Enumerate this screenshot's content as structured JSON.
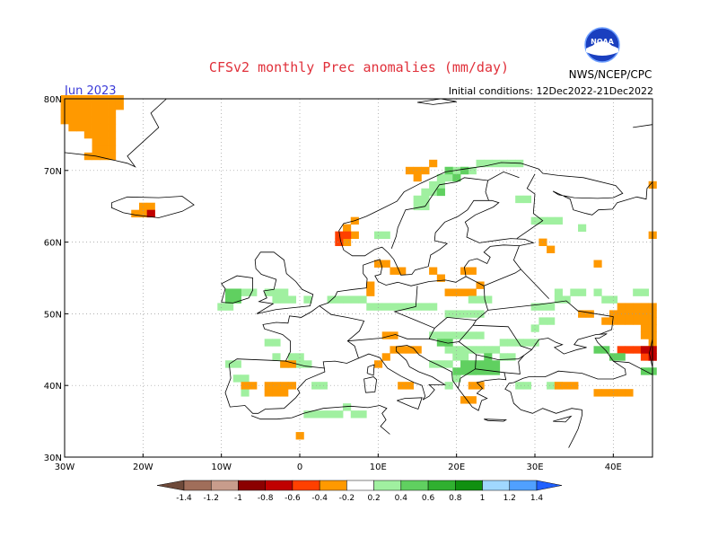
{
  "header": {
    "title": "CFSv2 monthly Prec anomalies (mm/day)",
    "month": "Jun 2023",
    "initial_conditions": "Initial conditions: 12Dec2022-21Dec2022",
    "agency": "NWS/NCEP/CPC",
    "logo_text": "NOAA"
  },
  "axes": {
    "lat_labels": [
      "80N",
      "70N",
      "60N",
      "50N",
      "40N",
      "30N"
    ],
    "lon_labels": [
      "30W",
      "20W",
      "10W",
      "0",
      "10E",
      "20E",
      "30E",
      "40E"
    ],
    "lat_values": [
      80,
      70,
      60,
      50,
      40,
      30
    ],
    "lon_values": [
      -30,
      -20,
      -10,
      0,
      10,
      20,
      30,
      40
    ],
    "lon_range": [
      -30,
      45
    ],
    "lat_range": [
      30,
      80
    ],
    "grid": "dotted"
  },
  "colorbar": {
    "tick_labels": [
      "-1.4",
      "-1.2",
      "-1",
      "-0.8",
      "-0.6",
      "-0.4",
      "-0.2",
      "0.2",
      "0.4",
      "0.6",
      "0.8",
      "1",
      "1.2",
      "1.4"
    ],
    "colors": [
      "#6e4a3a",
      "#a06e5a",
      "#c89c8c",
      "#8b0000",
      "#c00000",
      "#ff4000",
      "#ff9900",
      "#ffffff",
      "#a0f0a0",
      "#60d060",
      "#30b030",
      "#109010",
      "#a0d8ff",
      "#50a0ff",
      "#2060ff"
    ]
  },
  "anomaly_regions": [
    {
      "name": "greenland-dry",
      "color": "#ff9900",
      "cells": [
        [
          -30,
          80
        ],
        [
          -29,
          80
        ],
        [
          -28,
          80
        ],
        [
          -27,
          80
        ],
        [
          -26,
          80
        ],
        [
          -25,
          80
        ],
        [
          -24,
          80
        ],
        [
          -23,
          80
        ],
        [
          -30,
          79
        ],
        [
          -29,
          79
        ],
        [
          -28,
          79
        ],
        [
          -27,
          79
        ],
        [
          -26,
          79
        ],
        [
          -25,
          79
        ],
        [
          -24,
          79
        ],
        [
          -23,
          79
        ],
        [
          -30,
          78
        ],
        [
          -29,
          78
        ],
        [
          -28,
          78
        ],
        [
          -27,
          78
        ],
        [
          -26,
          78
        ],
        [
          -25,
          78
        ],
        [
          -24,
          78
        ],
        [
          -30,
          77
        ],
        [
          -29,
          77
        ],
        [
          -28,
          77
        ],
        [
          -27,
          77
        ],
        [
          -26,
          77
        ],
        [
          -25,
          77
        ],
        [
          -24,
          77
        ],
        [
          -29,
          76
        ],
        [
          -28,
          76
        ],
        [
          -27,
          76
        ],
        [
          -26,
          76
        ],
        [
          -25,
          76
        ],
        [
          -24,
          76
        ],
        [
          -27,
          75
        ],
        [
          -26,
          75
        ],
        [
          -25,
          75
        ],
        [
          -24,
          75
        ],
        [
          -26,
          74
        ],
        [
          -25,
          74
        ],
        [
          -24,
          74
        ],
        [
          -26,
          73
        ],
        [
          -25,
          73
        ],
        [
          -24,
          73
        ],
        [
          -27,
          72
        ],
        [
          -26,
          72
        ],
        [
          -25,
          72
        ],
        [
          -24,
          72
        ]
      ]
    },
    {
      "name": "iceland-dry",
      "color": "#ff9900",
      "cells": [
        [
          -21,
          64
        ],
        [
          -20,
          64
        ],
        [
          -19,
          64
        ],
        [
          -20,
          65
        ],
        [
          -19,
          65
        ]
      ]
    },
    {
      "name": "iceland-very-dry",
      "color": "#c00000",
      "cells": [
        [
          -19,
          64
        ]
      ]
    },
    {
      "name": "norway-dry",
      "color": "#ff9900",
      "cells": [
        [
          6,
          61
        ],
        [
          6,
          60
        ],
        [
          7,
          61
        ],
        [
          7,
          63
        ],
        [
          6,
          62
        ],
        [
          15,
          70
        ],
        [
          14,
          70
        ],
        [
          16,
          70
        ],
        [
          17,
          71
        ],
        [
          15,
          69
        ]
      ]
    },
    {
      "name": "norway-very-dry",
      "color": "#ff4000",
      "cells": [
        [
          5,
          61
        ],
        [
          5,
          60
        ],
        [
          6,
          61
        ]
      ]
    },
    {
      "name": "scandinavia-wet",
      "color": "#a0f0a0",
      "cells": [
        [
          19,
          70
        ],
        [
          20,
          70
        ],
        [
          21,
          70
        ],
        [
          22,
          70
        ],
        [
          23,
          71
        ],
        [
          24,
          71
        ],
        [
          25,
          71
        ],
        [
          26,
          71
        ],
        [
          27,
          71
        ],
        [
          28,
          71
        ],
        [
          18,
          69
        ],
        [
          19,
          69
        ],
        [
          17,
          68
        ],
        [
          18,
          68
        ],
        [
          16,
          67
        ],
        [
          17,
          67
        ],
        [
          16,
          66
        ],
        [
          15,
          66
        ],
        [
          15,
          65
        ],
        [
          16,
          65
        ],
        [
          28,
          66
        ],
        [
          29,
          66
        ],
        [
          30,
          63
        ],
        [
          31,
          63
        ],
        [
          32,
          63
        ],
        [
          33,
          63
        ],
        [
          36,
          62
        ],
        [
          10,
          61
        ],
        [
          11,
          61
        ]
      ]
    },
    {
      "name": "scandinavia-wet-mid",
      "color": "#60d060",
      "cells": [
        [
          19,
          70
        ],
        [
          20,
          69
        ],
        [
          21,
          70
        ],
        [
          18,
          67
        ]
      ]
    },
    {
      "name": "baltic-dry",
      "color": "#ff9900",
      "cells": [
        [
          10,
          57
        ],
        [
          11,
          57
        ],
        [
          12,
          56
        ],
        [
          13,
          56
        ],
        [
          17,
          56
        ],
        [
          18,
          55
        ],
        [
          21,
          56
        ],
        [
          22,
          56
        ],
        [
          23,
          54
        ],
        [
          19,
          53
        ],
        [
          20,
          53
        ],
        [
          21,
          53
        ],
        [
          22,
          53
        ],
        [
          9,
          54
        ],
        [
          9,
          53
        ],
        [
          31,
          60
        ],
        [
          32,
          59
        ]
      ]
    },
    {
      "name": "uk-wet",
      "color": "#a0f0a0",
      "cells": [
        [
          -9,
          53
        ],
        [
          -8,
          53
        ],
        [
          -7,
          53
        ],
        [
          -6,
          53
        ],
        [
          -4,
          53
        ],
        [
          -3,
          52
        ],
        [
          -2,
          52
        ],
        [
          -1,
          52
        ],
        [
          -3,
          53
        ],
        [
          -2,
          53
        ],
        [
          1,
          52
        ],
        [
          4,
          52
        ],
        [
          5,
          52
        ],
        [
          -10,
          51
        ],
        [
          -9,
          51
        ]
      ]
    },
    {
      "name": "uk-wet-mid",
      "color": "#60d060",
      "cells": [
        [
          -9,
          53
        ],
        [
          -8,
          53
        ],
        [
          -9,
          52
        ],
        [
          -8,
          52
        ]
      ]
    },
    {
      "name": "central-europe-wet",
      "color": "#a0f0a0",
      "cells": [
        [
          6,
          52
        ],
        [
          7,
          52
        ],
        [
          8,
          52
        ],
        [
          9,
          51
        ],
        [
          10,
          51
        ],
        [
          11,
          51
        ],
        [
          12,
          51
        ],
        [
          13,
          51
        ],
        [
          14,
          51
        ],
        [
          15,
          51
        ],
        [
          16,
          51
        ],
        [
          17,
          51
        ],
        [
          19,
          50
        ],
        [
          20,
          50
        ],
        [
          21,
          50
        ],
        [
          22,
          50
        ],
        [
          23,
          50
        ],
        [
          22,
          52
        ],
        [
          23,
          52
        ],
        [
          24,
          52
        ],
        [
          30,
          51
        ],
        [
          31,
          51
        ],
        [
          32,
          51
        ],
        [
          33,
          52
        ],
        [
          34,
          52
        ],
        [
          33,
          53
        ],
        [
          35,
          53
        ],
        [
          36,
          53
        ],
        [
          38,
          53
        ],
        [
          39,
          52
        ],
        [
          40,
          52
        ],
        [
          43,
          53
        ],
        [
          44,
          53
        ],
        [
          31,
          49
        ],
        [
          32,
          49
        ],
        [
          30,
          48
        ]
      ]
    },
    {
      "name": "balkans-wet",
      "color": "#a0f0a0",
      "cells": [
        [
          17,
          47
        ],
        [
          18,
          47
        ],
        [
          19,
          47
        ],
        [
          20,
          47
        ],
        [
          21,
          47
        ],
        [
          22,
          47
        ],
        [
          23,
          47
        ],
        [
          19,
          45
        ],
        [
          20,
          45
        ],
        [
          21,
          45
        ],
        [
          22,
          45
        ],
        [
          23,
          45
        ],
        [
          24,
          45
        ],
        [
          25,
          45
        ],
        [
          26,
          46
        ],
        [
          27,
          46
        ],
        [
          28,
          46
        ],
        [
          29,
          46
        ],
        [
          30,
          46
        ],
        [
          20,
          44
        ],
        [
          21,
          44
        ],
        [
          26,
          44
        ],
        [
          27,
          44
        ],
        [
          17,
          43
        ],
        [
          18,
          43
        ],
        [
          19,
          43
        ],
        [
          22,
          42
        ],
        [
          20,
          41
        ],
        [
          19,
          40
        ],
        [
          28,
          40
        ],
        [
          29,
          40
        ],
        [
          32,
          40
        ],
        [
          33,
          40
        ]
      ]
    },
    {
      "name": "balkans-wet-mid",
      "color": "#60d060",
      "cells": [
        [
          21,
          43
        ],
        [
          22,
          43
        ],
        [
          23,
          43
        ],
        [
          24,
          43
        ],
        [
          25,
          43
        ],
        [
          22,
          42
        ],
        [
          23,
          42
        ],
        [
          24,
          42
        ],
        [
          25,
          42
        ],
        [
          20,
          42
        ],
        [
          21,
          42
        ],
        [
          24,
          44
        ],
        [
          19,
          46
        ],
        [
          18,
          46
        ]
      ]
    },
    {
      "name": "iberia-wet",
      "color": "#a0f0a0",
      "cells": [
        [
          -9,
          43
        ],
        [
          -8,
          43
        ],
        [
          -2,
          43
        ],
        [
          -1,
          43
        ],
        [
          0,
          43
        ],
        [
          1,
          43
        ],
        [
          -8,
          41
        ],
        [
          -7,
          41
        ],
        [
          -7,
          39
        ],
        [
          -3,
          44
        ],
        [
          2,
          40
        ],
        [
          3,
          40
        ],
        [
          -4,
          46
        ],
        [
          -3,
          46
        ],
        [
          -1,
          44
        ],
        [
          0,
          44
        ]
      ]
    },
    {
      "name": "iberia-dry",
      "color": "#ff9900",
      "cells": [
        [
          -7,
          40
        ],
        [
          -6,
          40
        ],
        [
          -4,
          40
        ],
        [
          -3,
          40
        ],
        [
          -2,
          40
        ],
        [
          -1,
          40
        ],
        [
          -4,
          39
        ],
        [
          -3,
          39
        ],
        [
          -2,
          39
        ],
        [
          -2,
          43
        ],
        [
          -1,
          43
        ],
        [
          0,
          33
        ]
      ]
    },
    {
      "name": "north-africa-wet",
      "color": "#a0f0a0",
      "cells": [
        [
          1,
          36
        ],
        [
          2,
          36
        ],
        [
          3,
          36
        ],
        [
          4,
          36
        ],
        [
          5,
          36
        ],
        [
          6,
          37
        ],
        [
          7,
          36
        ],
        [
          8,
          36
        ]
      ]
    },
    {
      "name": "italy-dry",
      "color": "#ff9900",
      "cells": [
        [
          11,
          47
        ],
        [
          12,
          47
        ],
        [
          13,
          45
        ],
        [
          14,
          45
        ],
        [
          15,
          45
        ],
        [
          12,
          45
        ],
        [
          11,
          44
        ],
        [
          10,
          43
        ],
        [
          13,
          40
        ],
        [
          14,
          40
        ]
      ]
    },
    {
      "name": "turkey-dry",
      "color": "#ff9900",
      "cells": [
        [
          33,
          40
        ],
        [
          34,
          40
        ],
        [
          35,
          40
        ],
        [
          38,
          39
        ],
        [
          39,
          39
        ],
        [
          40,
          39
        ],
        [
          41,
          39
        ],
        [
          42,
          39
        ]
      ]
    },
    {
      "name": "greece-dry",
      "color": "#ff9900",
      "cells": [
        [
          22,
          40
        ],
        [
          23,
          40
        ],
        [
          21,
          38
        ],
        [
          22,
          38
        ]
      ]
    },
    {
      "name": "russia-dry",
      "color": "#ff9900",
      "cells": [
        [
          41,
          51
        ],
        [
          42,
          51
        ],
        [
          43,
          51
        ],
        [
          44,
          51
        ],
        [
          45,
          51
        ],
        [
          40,
          50
        ],
        [
          41,
          50
        ],
        [
          42,
          50
        ],
        [
          43,
          50
        ],
        [
          44,
          50
        ],
        [
          45,
          50
        ],
        [
          39,
          49
        ],
        [
          40,
          49
        ],
        [
          41,
          49
        ],
        [
          42,
          49
        ],
        [
          43,
          49
        ],
        [
          44,
          49
        ],
        [
          45,
          49
        ],
        [
          44,
          48
        ],
        [
          45,
          48
        ],
        [
          44,
          47
        ],
        [
          45,
          47
        ],
        [
          45,
          46
        ],
        [
          45,
          45
        ],
        [
          44,
          45
        ],
        [
          36,
          50
        ],
        [
          37,
          50
        ],
        [
          38,
          57
        ],
        [
          45,
          61
        ],
        [
          45,
          68
        ]
      ]
    },
    {
      "name": "caucasus-very-dry",
      "color": "#ff4000",
      "cells": [
        [
          41,
          45
        ],
        [
          42,
          45
        ],
        [
          43,
          45
        ],
        [
          44,
          44
        ],
        [
          45,
          44
        ]
      ]
    },
    {
      "name": "caucasus-extreme",
      "color": "#c00000",
      "cells": [
        [
          44,
          45
        ],
        [
          45,
          45
        ],
        [
          45,
          44
        ]
      ]
    },
    {
      "name": "caucasus-wet",
      "color": "#60d060",
      "cells": [
        [
          38,
          45
        ],
        [
          39,
          45
        ],
        [
          40,
          44
        ],
        [
          41,
          44
        ],
        [
          45,
          42
        ],
        [
          44,
          42
        ]
      ]
    }
  ]
}
